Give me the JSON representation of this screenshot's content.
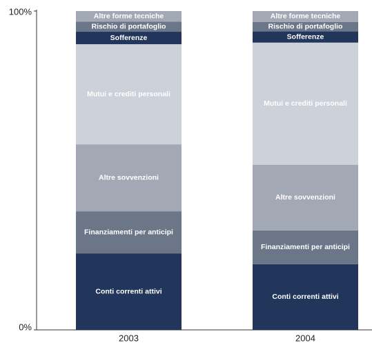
{
  "chart_data": {
    "type": "stacked-bar",
    "categories": [
      "2003",
      "2004"
    ],
    "series": [
      {
        "name": "Conti correnti attivi",
        "color": "#22365c",
        "values": [
          24.0,
          20.6
        ]
      },
      {
        "name": "Finanziamenti per anticipi",
        "color": "#6b7689",
        "values": [
          13.2,
          10.6
        ]
      },
      {
        "name": "Altre sovvenzioni",
        "color": "#a3a9b4",
        "values": [
          21.0,
          20.6
        ]
      },
      {
        "name": "Mutui e crediti personali",
        "color": "#cdd1d9",
        "values": [
          31.4,
          38.3
        ]
      },
      {
        "name": "Sofferenze",
        "color": "#22365c",
        "values": [
          3.9,
          3.5
        ]
      },
      {
        "name": "Rischio di portafoglio",
        "color": "#6b7689",
        "values": [
          3.2,
          3.0
        ]
      },
      {
        "name": "Altre forme tecniche",
        "color": "#a3a9b4",
        "values": [
          3.3,
          3.4
        ]
      }
    ],
    "ylim": [
      0,
      100
    ],
    "yticks": [
      {
        "value": 0,
        "label": "0%"
      },
      {
        "value": 100,
        "label": "100%"
      }
    ]
  }
}
